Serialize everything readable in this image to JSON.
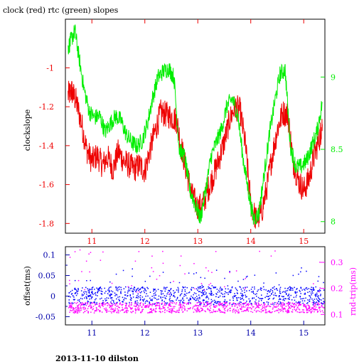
{
  "figure": {
    "title": "clock (red) rtc (green) slopes",
    "footer": "2013-11-10 dilston"
  },
  "colors": {
    "clock": "#ee0000",
    "rtc": "#00ee00",
    "offset": "#0000ff",
    "rndtrip": "#ff00ff",
    "axis_bottom": "#0000aa",
    "axis_black": "#000000"
  },
  "chart_data": [
    {
      "type": "line",
      "title": "clock (red) rtc (green) slopes",
      "xlim": [
        10.5,
        15.4
      ],
      "x_ticks": [
        11,
        12,
        13,
        14,
        15
      ],
      "x_tick_labels": [
        "11",
        "12",
        "13",
        "14",
        "15"
      ],
      "ylabel": "clockslope",
      "ylim": [
        -1.85,
        -0.75
      ],
      "y_ticks": [
        -1.8,
        -1.6,
        -1.4,
        -1.2,
        -1
      ],
      "y_tick_labels": [
        "-1.8",
        "-1.6",
        "-1.4",
        "-1.2",
        "-1"
      ],
      "y2lim": [
        7.92,
        9.4
      ],
      "y2_ticks": [
        8,
        8.5,
        9
      ],
      "y2_tick_labels": [
        "8",
        "8.5",
        "9"
      ],
      "grid": false,
      "series": [
        {
          "key": "clock",
          "axis": "left",
          "x": [
            10.55,
            10.62,
            10.7,
            10.8,
            10.9,
            11.0,
            11.1,
            11.2,
            11.3,
            11.4,
            11.5,
            11.6,
            11.7,
            11.8,
            11.9,
            12.0,
            12.1,
            12.2,
            12.3,
            12.4,
            12.5,
            12.6,
            12.7,
            12.8,
            12.9,
            13.0,
            13.1,
            13.2,
            13.3,
            13.4,
            13.5,
            13.6,
            13.7,
            13.8,
            13.9,
            14.0,
            14.1,
            14.2,
            14.3,
            14.4,
            14.5,
            14.6,
            14.7,
            14.8,
            14.9,
            15.0,
            15.1,
            15.2,
            15.3,
            15.35
          ],
          "values": [
            -1.14,
            -1.12,
            -1.17,
            -1.28,
            -1.42,
            -1.48,
            -1.45,
            -1.5,
            -1.46,
            -1.52,
            -1.43,
            -1.48,
            -1.5,
            -1.52,
            -1.5,
            -1.53,
            -1.42,
            -1.32,
            -1.23,
            -1.24,
            -1.25,
            -1.27,
            -1.42,
            -1.55,
            -1.66,
            -1.72,
            -1.7,
            -1.62,
            -1.55,
            -1.47,
            -1.38,
            -1.27,
            -1.2,
            -1.22,
            -1.4,
            -1.7,
            -1.78,
            -1.75,
            -1.62,
            -1.46,
            -1.32,
            -1.23,
            -1.24,
            -1.48,
            -1.58,
            -1.63,
            -1.57,
            -1.45,
            -1.36,
            -1.29
          ]
        },
        {
          "key": "rtc",
          "axis": "right",
          "x": [
            10.55,
            10.6,
            10.68,
            10.75,
            10.85,
            10.95,
            11.05,
            11.15,
            11.25,
            11.35,
            11.45,
            11.55,
            11.65,
            11.75,
            11.85,
            11.95,
            12.05,
            12.15,
            12.25,
            12.35,
            12.45,
            12.55,
            12.65,
            12.75,
            12.85,
            12.95,
            13.05,
            13.15,
            13.25,
            13.35,
            13.45,
            13.55,
            13.65,
            13.75,
            13.85,
            13.95,
            14.05,
            14.15,
            14.25,
            14.35,
            14.45,
            14.55,
            14.65,
            14.75,
            14.85,
            14.95,
            15.05,
            15.15,
            15.25,
            15.35
          ],
          "values": [
            9.2,
            9.25,
            9.32,
            9.15,
            8.92,
            8.76,
            8.72,
            8.73,
            8.62,
            8.68,
            8.73,
            8.7,
            8.6,
            8.55,
            8.52,
            8.56,
            8.68,
            8.86,
            9.0,
            9.04,
            9.06,
            9.0,
            8.5,
            8.45,
            8.22,
            8.12,
            8.02,
            8.22,
            8.45,
            8.55,
            8.64,
            8.8,
            8.85,
            8.75,
            8.45,
            8.22,
            8.02,
            8.05,
            8.32,
            8.6,
            8.82,
            9.02,
            9.05,
            8.52,
            8.38,
            8.38,
            8.42,
            8.52,
            8.62,
            8.82
          ]
        }
      ]
    },
    {
      "type": "scatter",
      "xlim": [
        10.5,
        15.4
      ],
      "x_ticks": [
        11,
        12,
        13,
        14,
        15
      ],
      "x_tick_labels": [
        "11",
        "12",
        "13",
        "14",
        "15"
      ],
      "ylabel": "offset(ms)",
      "ylim": [
        -0.07,
        0.12
      ],
      "y_ticks": [
        -0.05,
        -0.025,
        0,
        0.025,
        0.05,
        0.075,
        0.1
      ],
      "y_tick_labels": [
        "-0.05",
        "",
        "0",
        "",
        "0.05",
        "",
        "0.1"
      ],
      "y2label": "rnd-trip(ms)",
      "y2lim": [
        0.06,
        0.36
      ],
      "y2_ticks": [
        0.1,
        0.2,
        0.3
      ],
      "y2_tick_labels": [
        "0.1",
        "0.2",
        "0.3"
      ],
      "grid": false,
      "series": [
        {
          "key": "offset",
          "axis": "left",
          "band_center": 0.002,
          "band_halfwidth": 0.022,
          "outlier_range": [
            0.025,
            0.07
          ]
        },
        {
          "key": "rndtrip",
          "axis": "right",
          "band_center": 0.128,
          "band_halfwidth": 0.02,
          "outlier_range": [
            0.18,
            0.35
          ]
        }
      ]
    }
  ]
}
